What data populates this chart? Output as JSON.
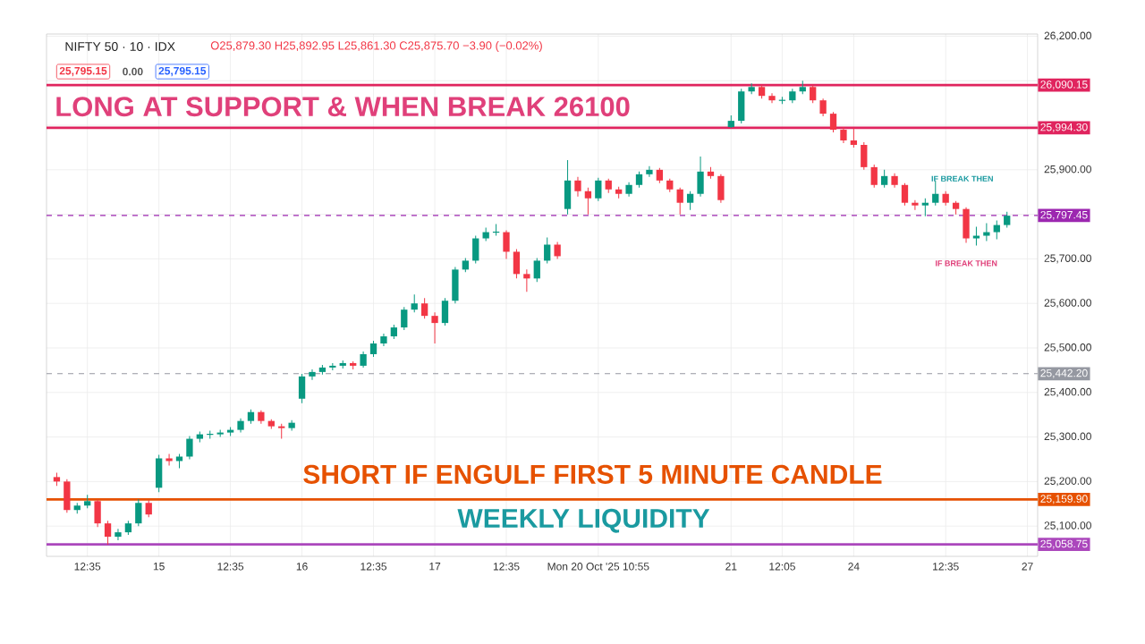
{
  "chart_data": {
    "type": "candlestick",
    "title": "NIFTY 50 · 10 · IDX",
    "subtitle": "O25,879.30 H25,892.95 L25,861.30 C25,875.70 −3.90 (−0.02%)",
    "annotations": [
      "LONG AT SUPPORT & WHEN BREAK 26100",
      "SHORT IF ENGULF FIRST 5 MINUTE CANDLE",
      "WEEKLY LIQUIDITY",
      "IF BREAK THEN",
      "IF BREAK THEN",
      "25,795.15",
      "0.00",
      "25,795.15"
    ],
    "categories": [
      null,
      null,
      null,
      "12:35",
      null,
      null,
      null,
      null,
      null,
      null,
      "15",
      null,
      null,
      null,
      null,
      null,
      null,
      "12:35",
      null,
      null,
      null,
      null,
      null,
      null,
      "16",
      null,
      null,
      null,
      null,
      null,
      null,
      "12:35",
      null,
      null,
      null,
      null,
      null,
      "17",
      null,
      null,
      null,
      null,
      null,
      null,
      "12:35",
      null,
      null,
      null,
      null,
      null,
      null,
      null,
      null,
      "Mon 20 Oct '25  10:55",
      null,
      null,
      null,
      null,
      null,
      null,
      null,
      null,
      null,
      null,
      null,
      null,
      "21",
      null,
      null,
      null,
      null,
      "12:05",
      null,
      null,
      null,
      null,
      null,
      null,
      "24",
      null,
      null,
      null,
      null,
      null,
      null,
      null,
      null,
      "12:35",
      null,
      null,
      null,
      null,
      null,
      null,
      null,
      "27"
    ],
    "ohlc": [
      [
        25210,
        25220,
        25190,
        25200
      ],
      [
        25200,
        25205,
        25130,
        25136
      ],
      [
        25136,
        25152,
        25128,
        25146
      ],
      [
        25146,
        25170,
        25140,
        25156
      ],
      [
        25156,
        25160,
        25098,
        25106
      ],
      [
        25106,
        25112,
        25058,
        25076
      ],
      [
        25076,
        25094,
        25068,
        25086
      ],
      [
        25086,
        25112,
        25080,
        25106
      ],
      [
        25106,
        25160,
        25100,
        25152
      ],
      [
        25152,
        25158,
        25120,
        25126
      ],
      [
        25186,
        25260,
        25176,
        25252
      ],
      [
        25252,
        25262,
        25236,
        25246
      ],
      [
        25246,
        25262,
        25230,
        25256
      ],
      [
        25256,
        25302,
        25250,
        25296
      ],
      [
        25296,
        25312,
        25288,
        25306
      ],
      [
        25306,
        25314,
        25296,
        25306
      ],
      [
        25306,
        25316,
        25300,
        25310
      ],
      [
        25310,
        25322,
        25302,
        25316
      ],
      [
        25316,
        25342,
        25310,
        25336
      ],
      [
        25336,
        25362,
        25330,
        25356
      ],
      [
        25356,
        25360,
        25330,
        25336
      ],
      [
        25336,
        25340,
        25318,
        25324
      ],
      [
        25324,
        25330,
        25296,
        25320
      ],
      [
        25320,
        25338,
        25314,
        25332
      ],
      [
        25386,
        25442,
        25376,
        25436
      ],
      [
        25436,
        25452,
        25428,
        25446
      ],
      [
        25446,
        25462,
        25440,
        25456
      ],
      [
        25456,
        25466,
        25450,
        25460
      ],
      [
        25460,
        25472,
        25454,
        25466
      ],
      [
        25466,
        25470,
        25452,
        25460
      ],
      [
        25460,
        25492,
        25456,
        25486
      ],
      [
        25486,
        25516,
        25480,
        25510
      ],
      [
        25510,
        25532,
        25504,
        25526
      ],
      [
        25526,
        25552,
        25520,
        25546
      ],
      [
        25546,
        25592,
        25540,
        25586
      ],
      [
        25586,
        25620,
        25580,
        25600
      ],
      [
        25600,
        25612,
        25566,
        25572
      ],
      [
        25572,
        25580,
        25510,
        25556
      ],
      [
        25556,
        25612,
        25550,
        25606
      ],
      [
        25606,
        25682,
        25600,
        25676
      ],
      [
        25676,
        25702,
        25670,
        25696
      ],
      [
        25696,
        25752,
        25690,
        25746
      ],
      [
        25746,
        25770,
        25740,
        25760
      ],
      [
        25760,
        25778,
        25752,
        25760
      ],
      [
        25760,
        25764,
        25700,
        25716
      ],
      [
        25716,
        25722,
        25656,
        25666
      ],
      [
        25666,
        25676,
        25626,
        25656
      ],
      [
        25656,
        25702,
        25648,
        25696
      ],
      [
        25696,
        25748,
        25690,
        25732
      ],
      [
        25732,
        25738,
        25700,
        25706
      ],
      [
        25812,
        25922,
        25800,
        25876
      ],
      [
        25876,
        25884,
        25840,
        25852
      ],
      [
        25852,
        25860,
        25800,
        25836
      ],
      [
        25836,
        25882,
        25830,
        25876
      ],
      [
        25876,
        25880,
        25848,
        25856
      ],
      [
        25856,
        25862,
        25836,
        25846
      ],
      [
        25846,
        25872,
        25840,
        25866
      ],
      [
        25866,
        25896,
        25860,
        25890
      ],
      [
        25890,
        25908,
        25884,
        25900
      ],
      [
        25900,
        25904,
        25870,
        25876
      ],
      [
        25876,
        25880,
        25850,
        25856
      ],
      [
        25856,
        25860,
        25800,
        25826
      ],
      [
        25826,
        25852,
        25810,
        25846
      ],
      [
        25846,
        25930,
        25840,
        25896
      ],
      [
        25896,
        25906,
        25880,
        25886
      ],
      [
        25886,
        25890,
        25826,
        25832
      ],
      [
        25996,
        26022,
        25994,
        26010
      ],
      [
        26010,
        26082,
        26004,
        26076
      ],
      [
        26076,
        26094,
        26070,
        26086
      ],
      [
        26086,
        26090,
        26060,
        26066
      ],
      [
        26066,
        26072,
        26050,
        26056
      ],
      [
        26056,
        26064,
        26048,
        26056
      ],
      [
        26056,
        26082,
        26050,
        26076
      ],
      [
        26076,
        26100,
        26070,
        26086
      ],
      [
        26086,
        26090,
        26050,
        26056
      ],
      [
        26056,
        26060,
        26020,
        26026
      ],
      [
        26026,
        26030,
        25984,
        25990
      ],
      [
        25990,
        25996,
        25960,
        25966
      ],
      [
        25966,
        25994,
        25950,
        25956
      ],
      [
        25956,
        25962,
        25900,
        25906
      ],
      [
        25906,
        25912,
        25860,
        25866
      ],
      [
        25866,
        25900,
        25860,
        25886
      ],
      [
        25886,
        25892,
        25860,
        25866
      ],
      [
        25866,
        25870,
        25820,
        25826
      ],
      [
        25826,
        25832,
        25810,
        25820
      ],
      [
        25820,
        25836,
        25796,
        25826
      ],
      [
        25826,
        25876,
        25820,
        25846
      ],
      [
        25846,
        25852,
        25820,
        25826
      ],
      [
        25826,
        25830,
        25800,
        25812
      ],
      [
        25812,
        25816,
        25736,
        25746
      ],
      [
        25746,
        25772,
        25730,
        25752
      ],
      [
        25752,
        25780,
        25740,
        25760
      ],
      [
        25760,
        25786,
        25744,
        25776
      ],
      [
        25776,
        25806,
        25770,
        25797
      ],
      null,
      null
    ],
    "ylim": [
      25032,
      26205
    ],
    "yticks": [
      {
        "value": 25100,
        "label": "25,100.00"
      },
      {
        "value": 25200,
        "label": "25,200.00"
      },
      {
        "value": 25300,
        "label": "25,300.00"
      },
      {
        "value": 25400,
        "label": "25,400.00"
      },
      {
        "value": 25500,
        "label": "25,500.00"
      },
      {
        "value": 25600,
        "label": "25,600.00"
      },
      {
        "value": 25700,
        "label": "25,700.00"
      },
      {
        "value": 25800,
        "label": null
      },
      {
        "value": 25900,
        "label": "25,900.00"
      },
      {
        "value": 26000,
        "label": null
      },
      {
        "value": 26100,
        "label": null
      },
      {
        "value": 26200,
        "label": "26,200.00"
      }
    ],
    "ref_lines": [
      {
        "axis": "y",
        "value": 26090.15,
        "label": "26,090.15",
        "color": "#e0245e",
        "line_style": "solid"
      },
      {
        "axis": "y",
        "value": 25994.3,
        "label": "25,994.30",
        "color": "#e0245e",
        "line_style": "solid"
      },
      {
        "axis": "y",
        "value": 25797.45,
        "label": "25,797.45",
        "color": "#9c27b0",
        "line_style": "dashed"
      },
      {
        "axis": "y",
        "value": 25442.2,
        "label": "25,442.20",
        "color": "#9598a1",
        "line_style": "dashed"
      },
      {
        "axis": "y",
        "value": 25159.9,
        "label": "25,159.90",
        "color": "#e65100",
        "line_style": "solid"
      },
      {
        "axis": "y",
        "value": 25058.75,
        "label": "25,058.75",
        "color": "#ab47bc",
        "line_style": "solid"
      }
    ],
    "grid": true
  }
}
